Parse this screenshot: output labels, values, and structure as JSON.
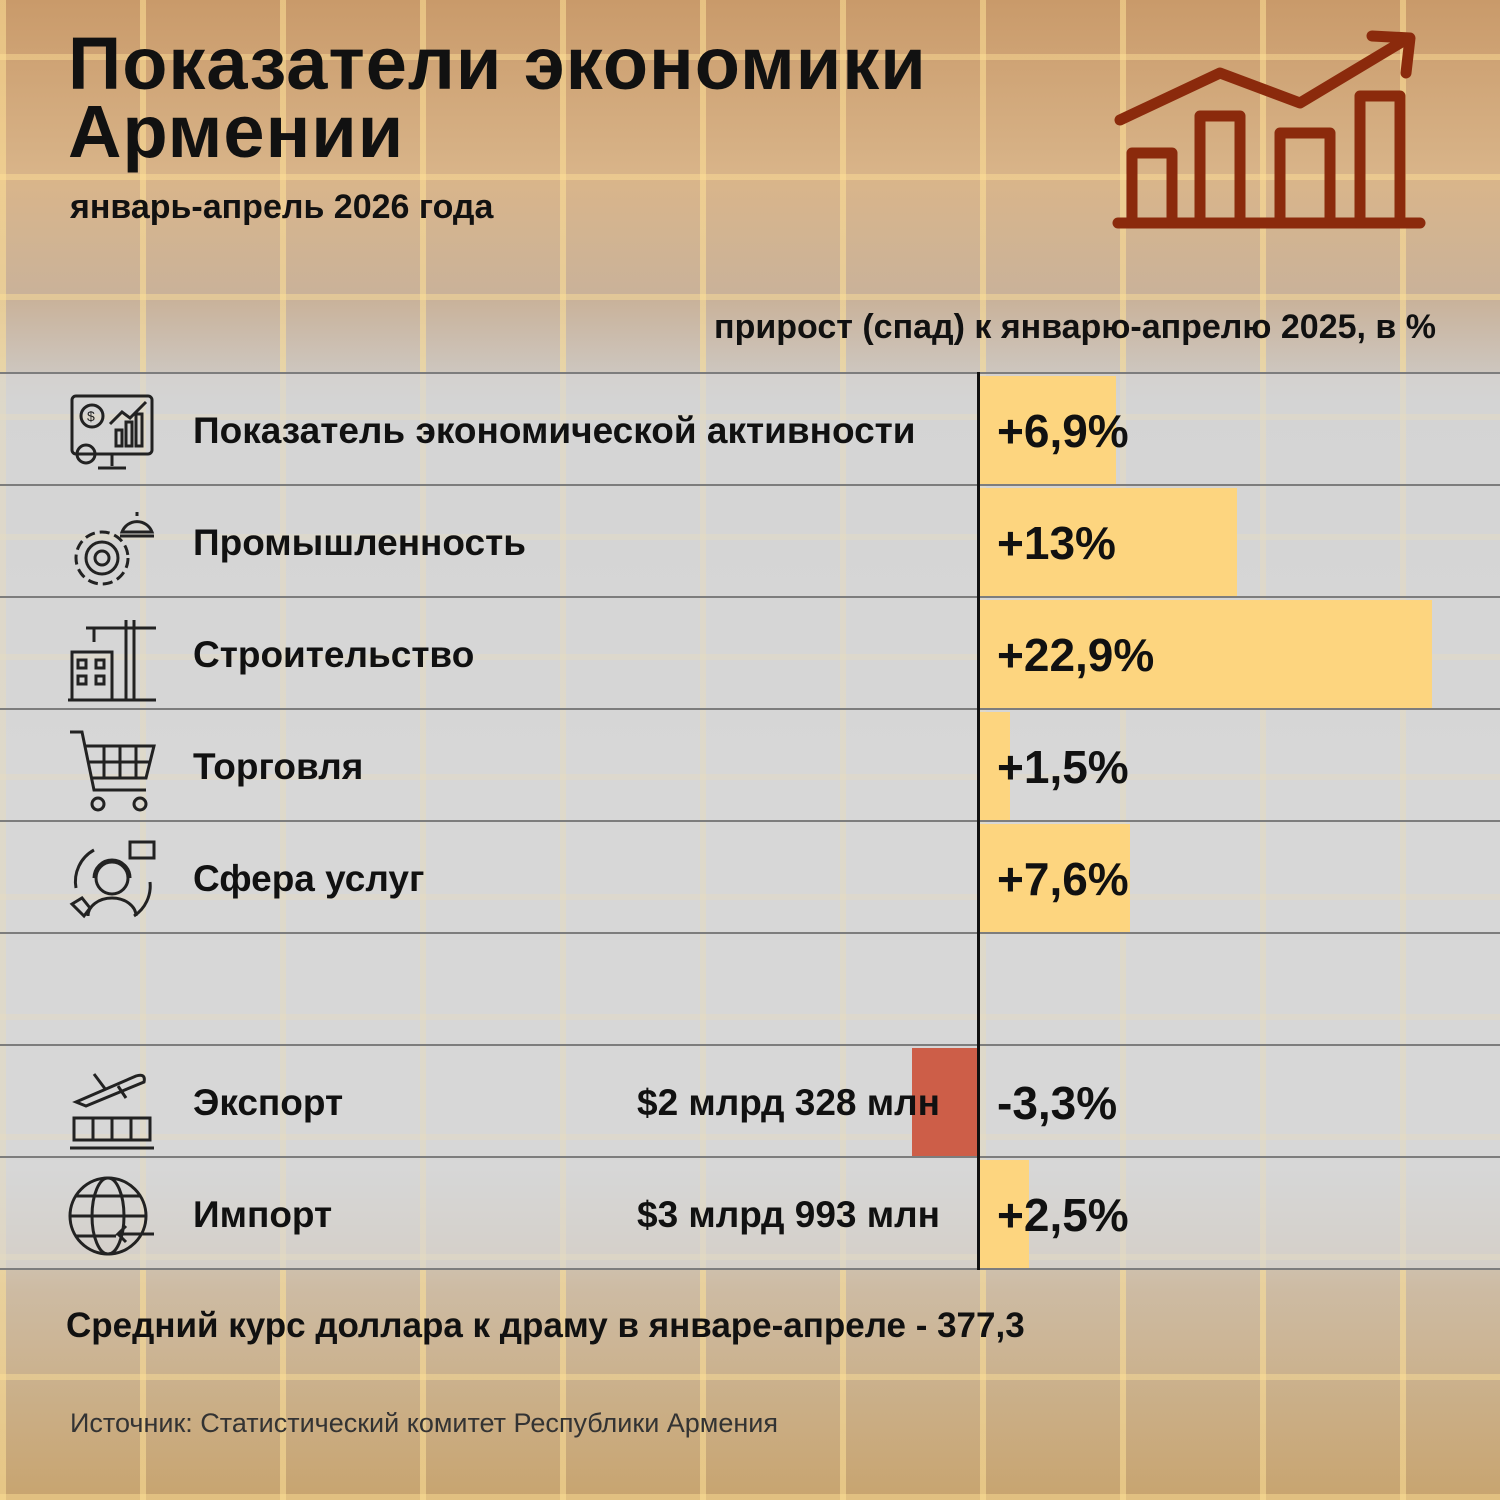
{
  "title": "Показатели экономики Армении",
  "subtitle": "январь-апрель 2026 года",
  "header_note": "прирост (спад) к январю-апрелю 2025, в %",
  "rows": [
    {
      "label": "Показатель экономической активности",
      "amount": "",
      "value_text": "+6,9%",
      "icon": "economic-activity-icon"
    },
    {
      "label": "Промышленность",
      "amount": "",
      "value_text": "+13%",
      "icon": "industry-gear-icon"
    },
    {
      "label": "Строительство",
      "amount": "",
      "value_text": "+22,9%",
      "icon": "construction-crane-icon"
    },
    {
      "label": "Торговля",
      "amount": "",
      "value_text": "+1,5%",
      "icon": "shopping-cart-icon"
    },
    {
      "label": "Сфера услуг",
      "amount": "",
      "value_text": "+7,6%",
      "icon": "customer-service-icon"
    },
    {
      "label": "",
      "amount": "",
      "value_text": "",
      "icon": ""
    },
    {
      "label": "Экспорт",
      "amount": "$2 млрд 328 млн",
      "value_text": "-3,3%",
      "icon": "export-airplane-icon"
    },
    {
      "label": "Импорт",
      "amount": "$3 млрд 993 млн",
      "value_text": "+2,5%",
      "icon": "import-globe-icon"
    }
  ],
  "footer_note": "Средний курс доллара к драму в январе-апреле - 377,3",
  "source": "Источник: Статистический комитет Республики Армения",
  "colors": {
    "positive_bar": "#fdd57f",
    "negative_bar": "#cd5e48",
    "logo": "#8b2a0c"
  },
  "chart_data": {
    "type": "bar",
    "orientation": "horizontal",
    "title": "Показатели экономики Армении",
    "subtitle": "январь-апрель 2026 года",
    "value_label": "прирост (спад) к январю-апрелю 2025, в %",
    "categories": [
      "Показатель экономической активности",
      "Промышленность",
      "Строительство",
      "Торговля",
      "Сфера услуг",
      "Экспорт",
      "Импорт"
    ],
    "values": [
      6.9,
      13,
      22.9,
      1.5,
      7.6,
      -3.3,
      2.5
    ],
    "grid": false
  }
}
